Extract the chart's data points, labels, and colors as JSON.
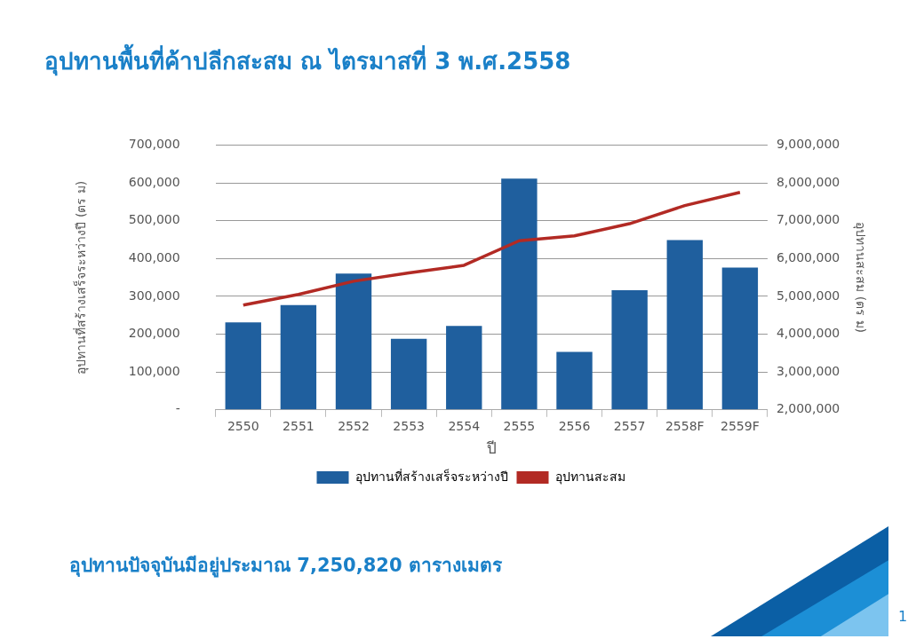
{
  "chart_data": {
    "type": "bar",
    "title": "อุปทานพื้นที่ค้าปลีกสะสม ณ ไตรมาสที่ 3 พ.ศ.2558",
    "xlabel": "ปี",
    "ylabel": "อุปทานที่สร้างเสร็จระหว่างปี (ตร ม)",
    "y2label": "อุปทานสะสม (ตร ม)",
    "categories": [
      "2550",
      "2551",
      "2552",
      "2553",
      "2554",
      "2555",
      "2556",
      "2557",
      "2558F",
      "2559F"
    ],
    "series": [
      {
        "name": "อุปทานที่สร้างเสร็จระหว่างปี",
        "color": "#1f5f9e",
        "values": [
          231000,
          277000,
          360000,
          188000,
          222000,
          611000,
          153000,
          316000,
          449000,
          376000
        ]
      },
      {
        "name": "อุปทานสะสม",
        "type": "line",
        "axis": "y2",
        "color": "#b22a24",
        "values": [
          4770000,
          5050000,
          5400000,
          5620000,
          5820000,
          6470000,
          6600000,
          6920000,
          7400000,
          7750000
        ]
      }
    ],
    "ylim": [
      0,
      700000
    ],
    "yticks": [
      {
        "value": 0,
        "label": "-"
      },
      {
        "value": 100000,
        "label": "100,000"
      },
      {
        "value": 200000,
        "label": "200,000"
      },
      {
        "value": 300000,
        "label": "300,000"
      },
      {
        "value": 400000,
        "label": "400,000"
      },
      {
        "value": 500000,
        "label": "500,000"
      },
      {
        "value": 600000,
        "label": "600,000"
      },
      {
        "value": 700000,
        "label": "700,000"
      }
    ],
    "y2lim": [
      2000000,
      9000000
    ],
    "y2ticks": [
      {
        "value": 2000000,
        "label": "2,000,000"
      },
      {
        "value": 3000000,
        "label": "3,000,000"
      },
      {
        "value": 4000000,
        "label": "4,000,000"
      },
      {
        "value": 5000000,
        "label": "5,000,000"
      },
      {
        "value": 6000000,
        "label": "6,000,000"
      },
      {
        "value": 7000000,
        "label": "7,000,000"
      },
      {
        "value": 8000000,
        "label": "8,000,000"
      },
      {
        "value": 9000000,
        "label": "9,000,000"
      }
    ],
    "grid": "y",
    "legend": "bottom",
    "marker": "none",
    "annotations": [
      "อุปทานปัจจุบันมีอยู่ประมาณ 7,250,820 ตารางเมตร",
      "1"
    ]
  }
}
